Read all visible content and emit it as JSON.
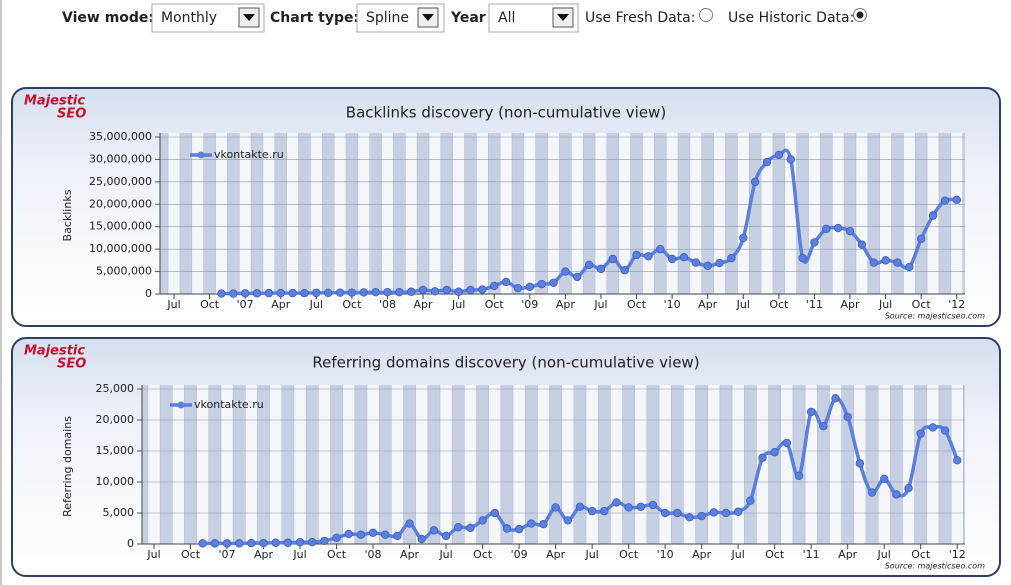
{
  "toolbar": {
    "view_mode": {
      "label": "View mode:",
      "value": "Monthly"
    },
    "chart_type": {
      "label": "Chart type:",
      "value": "Spline"
    },
    "year": {
      "label": "Year",
      "value": "All"
    },
    "fresh_data": {
      "label": "Use Fresh Data:",
      "checked": false
    },
    "historic_data": {
      "label": "Use Historic Data:",
      "checked": true
    }
  },
  "chart_data": [
    {
      "type": "line",
      "logo": {
        "line1": "Majestic",
        "line2": "SEO"
      },
      "title": "Backlinks discovery (non-cumulative view)",
      "y_label": "Backlinks",
      "source": "Source: majesticseo.com",
      "categories": [
        "Jul",
        null,
        null,
        "Oct",
        null,
        null,
        "'07",
        null,
        null,
        "Apr",
        null,
        null,
        "Jul",
        null,
        null,
        "Oct",
        null,
        null,
        "'08",
        null,
        null,
        "Apr",
        null,
        null,
        "Jul",
        null,
        null,
        "Oct",
        null,
        null,
        "'09",
        null,
        null,
        "Apr",
        null,
        null,
        "Jul",
        null,
        null,
        "Oct",
        null,
        null,
        "'10",
        null,
        null,
        "Apr",
        null,
        null,
        "Jul",
        null,
        null,
        "Oct",
        null,
        null,
        "'11",
        null,
        null,
        "Apr",
        null,
        null,
        "Jul",
        null,
        null,
        "Oct",
        null,
        null,
        "'12"
      ],
      "series": [
        {
          "name": "vkontakte.ru",
          "color": "#5a7fdc",
          "values": [
            null,
            null,
            null,
            null,
            100000,
            100000,
            150000,
            150000,
            200000,
            200000,
            200000,
            200000,
            250000,
            250000,
            300000,
            300000,
            350000,
            400000,
            400000,
            400000,
            500000,
            900000,
            600000,
            900000,
            500000,
            900000,
            1000000,
            1800000,
            2700000,
            1300000,
            1600000,
            2200000,
            2500000,
            5000000,
            3800000,
            6500000,
            5600000,
            7800000,
            5300000,
            8700000,
            8400000,
            10000000,
            7800000,
            8200000,
            7000000,
            6300000,
            6900000,
            8000000,
            12500000,
            25000000,
            29400000,
            31000000,
            30000000,
            8000000,
            11500000,
            14500000,
            14700000,
            14000000,
            11000000,
            7000000,
            7500000,
            7000000,
            6000000,
            12300000,
            17500000,
            20800000,
            21000000
          ]
        }
      ],
      "ylim": [
        0,
        35000000
      ],
      "yticks": [
        0,
        {
          "value": 5000000,
          "label": "5,000,000"
        },
        {
          "value": 10000000,
          "label": "10,000,000"
        },
        {
          "value": 15000000,
          "label": "15,000,000"
        },
        {
          "value": 20000000,
          "label": "20,000,000"
        },
        {
          "value": 25000000,
          "label": "25,000,000"
        },
        {
          "value": 30000000,
          "label": "30,000,000"
        },
        {
          "value": 35000000,
          "label": "35,000,000"
        }
      ],
      "grid": true
    },
    {
      "type": "line",
      "logo": {
        "line1": "Majestic",
        "line2": "SEO"
      },
      "title": "Referring domains discovery (non-cumulative view)",
      "y_label": "Referring domains",
      "source": "Source: majesticseo.com",
      "categories": [
        "Jul",
        null,
        null,
        "Oct",
        null,
        null,
        "'07",
        null,
        null,
        "Apr",
        null,
        null,
        "Jul",
        null,
        null,
        "Oct",
        null,
        null,
        "'08",
        null,
        null,
        "Apr",
        null,
        null,
        "Jul",
        null,
        null,
        "Oct",
        null,
        null,
        "'09",
        null,
        null,
        "Apr",
        null,
        null,
        "Jul",
        null,
        null,
        "Oct",
        null,
        null,
        "'10",
        null,
        null,
        "Apr",
        null,
        null,
        "Jul",
        null,
        null,
        "Oct",
        null,
        null,
        "'11",
        null,
        null,
        "Apr",
        null,
        null,
        "Jul",
        null,
        null,
        "Oct",
        null,
        null,
        "'12"
      ],
      "series": [
        {
          "name": "vkontakte.ru",
          "color": "#5a7fdc",
          "values": [
            null,
            null,
            null,
            null,
            100,
            100,
            100,
            100,
            150,
            150,
            200,
            200,
            300,
            300,
            500,
            1000,
            1600,
            1500,
            1800,
            1500,
            1300,
            3300,
            800,
            2200,
            1300,
            2700,
            2600,
            3800,
            5000,
            2500,
            2400,
            3300,
            3200,
            5900,
            3800,
            6000,
            5300,
            5300,
            6700,
            5900,
            6000,
            6300,
            5000,
            5000,
            4300,
            4500,
            5100,
            5000,
            5200,
            7000,
            13900,
            14800,
            16300,
            11000,
            21300,
            19000,
            23500,
            20500,
            13000,
            8300,
            10500,
            8000,
            9000,
            17800,
            18800,
            18300,
            13500
          ]
        }
      ],
      "ylim": [
        0,
        25000
      ],
      "yticks": [
        0,
        {
          "value": 5000,
          "label": "5,000"
        },
        {
          "value": 10000,
          "label": "10,000"
        },
        {
          "value": 15000,
          "label": "15,000"
        },
        {
          "value": 20000,
          "label": "20,000"
        },
        {
          "value": 25000,
          "label": "25,000"
        }
      ],
      "grid": true
    }
  ]
}
